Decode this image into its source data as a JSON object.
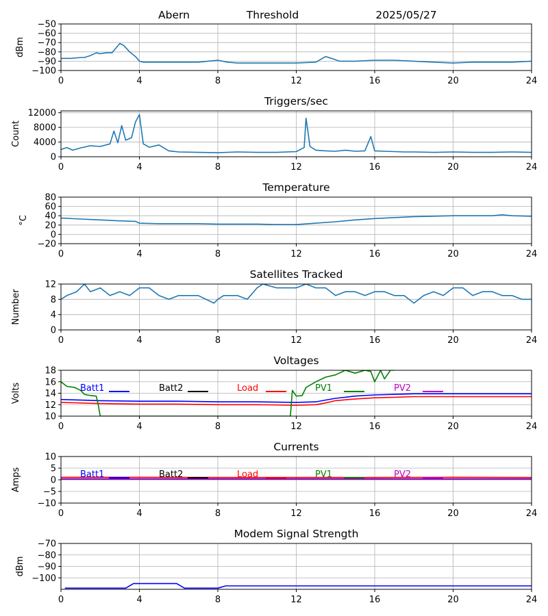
{
  "header": {
    "station": "Abern",
    "mode": "Threshold",
    "date": "2025/05/27"
  },
  "colors": {
    "default": "#1f77b4",
    "Batt1": "#0000ff",
    "Batt2": "#000000",
    "Load": "#ff0000",
    "PV1": "#008000",
    "PV2": "#bf00bf",
    "grid": "#b0b0b0"
  },
  "chart_data": [
    {
      "id": "threshold",
      "type": "line",
      "title": "",
      "ylabel": "dBm",
      "xlim": [
        0,
        24
      ],
      "ylim": [
        -100,
        -50
      ],
      "xticks": [
        0,
        4,
        8,
        12,
        16,
        20,
        24
      ],
      "yticks": [
        -100,
        -90,
        -80,
        -70,
        -60,
        -50
      ],
      "grid": true,
      "series": [
        {
          "x": [
            0,
            0.5,
            1,
            1.2,
            1.5,
            1.8,
            2,
            2.3,
            2.6,
            2.8,
            3.0,
            3.2,
            3.5,
            3.8,
            4.0,
            4.2,
            5,
            6,
            7,
            7.5,
            8,
            8.5,
            9,
            10,
            11,
            12,
            13,
            13.5,
            13.8,
            14.2,
            15,
            16,
            17,
            18,
            19,
            20,
            21,
            22,
            23,
            24
          ],
          "y": [
            -87,
            -87,
            -86,
            -86,
            -84,
            -81,
            -82,
            -81,
            -81,
            -76,
            -71,
            -73,
            -80,
            -85,
            -90,
            -91,
            -91,
            -91,
            -91,
            -90,
            -89,
            -91,
            -92,
            -92,
            -92,
            -92,
            -91,
            -85,
            -87,
            -90,
            -90,
            -89,
            -89,
            -90,
            -91,
            -92,
            -91,
            -91,
            -91,
            -90
          ]
        }
      ]
    },
    {
      "id": "triggers",
      "type": "line",
      "title": "Triggers/sec",
      "ylabel": "Count",
      "xlim": [
        0,
        24
      ],
      "ylim": [
        0,
        12500
      ],
      "xticks": [
        0,
        4,
        8,
        12,
        16,
        20,
        24
      ],
      "yticks": [
        0,
        4000,
        8000,
        12000
      ],
      "grid": true,
      "series": [
        {
          "x": [
            0,
            0.3,
            0.6,
            1.0,
            1.5,
            2.0,
            2.5,
            2.7,
            2.9,
            3.1,
            3.3,
            3.6,
            3.8,
            4.0,
            4.2,
            4.5,
            5.0,
            5.5,
            6.0,
            7.0,
            8.0,
            9.0,
            10.0,
            11.0,
            12.0,
            12.4,
            12.5,
            12.7,
            13.0,
            13.5,
            14.0,
            14.5,
            15.0,
            15.5,
            15.8,
            16.0,
            16.5,
            17.0,
            17.5,
            18.0,
            19.0,
            20.0,
            21.0,
            22.0,
            23.0,
            24.0
          ],
          "y": [
            2000,
            2500,
            1800,
            2400,
            3000,
            2800,
            3500,
            7000,
            3800,
            8500,
            4500,
            5200,
            9500,
            11500,
            3500,
            2600,
            3200,
            1600,
            1300,
            1200,
            1100,
            1300,
            1200,
            1200,
            1400,
            2500,
            10500,
            2800,
            1800,
            1600,
            1500,
            1800,
            1500,
            1600,
            5500,
            1600,
            1500,
            1400,
            1300,
            1300,
            1200,
            1300,
            1200,
            1200,
            1300,
            1200
          ]
        }
      ]
    },
    {
      "id": "temperature",
      "type": "line",
      "title": "Temperature",
      "ylabel": "°C",
      "xlim": [
        0,
        24
      ],
      "ylim": [
        -20,
        80
      ],
      "xticks": [
        0,
        4,
        8,
        12,
        16,
        20,
        24
      ],
      "yticks": [
        -20,
        0,
        20,
        40,
        60,
        80
      ],
      "grid": true,
      "series": [
        {
          "x": [
            0,
            1,
            2,
            3,
            3.8,
            4.0,
            5,
            6,
            7,
            8,
            9,
            10,
            11,
            12,
            13,
            14,
            15,
            16,
            17,
            18,
            19,
            20,
            21,
            22,
            22.5,
            23,
            24
          ],
          "y": [
            35,
            33,
            31,
            29,
            28,
            24,
            23,
            23,
            23,
            22,
            22,
            22,
            21,
            21,
            24,
            27,
            31,
            34,
            36,
            38,
            39,
            40,
            40,
            40,
            42,
            40,
            39
          ]
        }
      ]
    },
    {
      "id": "satellites",
      "type": "line",
      "title": "Satellites Tracked",
      "ylabel": "Number",
      "xlim": [
        0,
        24
      ],
      "ylim": [
        0,
        12
      ],
      "xticks": [
        0,
        4,
        8,
        12,
        16,
        20,
        24
      ],
      "yticks": [
        0,
        4,
        8,
        12
      ],
      "grid": true,
      "series": [
        {
          "x": [
            0,
            0.3,
            0.8,
            1.0,
            1.2,
            1.5,
            2.0,
            2.5,
            3.0,
            3.5,
            4.0,
            4.5,
            5.0,
            5.5,
            6.0,
            7.0,
            7.8,
            8.0,
            8.3,
            9.0,
            9.5,
            10.0,
            10.3,
            11.0,
            11.5,
            12.0,
            12.5,
            13.0,
            13.5,
            14.0,
            14.5,
            15.0,
            15.5,
            16.0,
            16.5,
            17.0,
            17.5,
            18.0,
            18.5,
            19.0,
            19.5,
            20.0,
            20.5,
            21.0,
            21.5,
            22.0,
            22.5,
            23.0,
            23.5,
            24.0
          ],
          "y": [
            8,
            9,
            10,
            11,
            12,
            10,
            11,
            9,
            10,
            9,
            11,
            11,
            9,
            8,
            9,
            9,
            7,
            8,
            9,
            9,
            8,
            11,
            12,
            11,
            11,
            11,
            12,
            11,
            11,
            9,
            10,
            10,
            9,
            10,
            10,
            9,
            9,
            7,
            9,
            10,
            9,
            11,
            11,
            9,
            10,
            10,
            9,
            9,
            8,
            8
          ]
        }
      ]
    },
    {
      "id": "voltages",
      "type": "line",
      "title": "Voltages",
      "ylabel": "Volts",
      "xlim": [
        0,
        24
      ],
      "ylim": [
        10,
        18
      ],
      "xticks": [
        0,
        4,
        8,
        12,
        16,
        20,
        24
      ],
      "yticks": [
        10,
        12,
        14,
        16,
        18
      ],
      "grid": true,
      "legend": [
        "Batt1",
        "Batt2",
        "Load",
        "PV1",
        "PV2"
      ],
      "series": [
        {
          "name": "Batt1",
          "x": [
            0,
            2,
            4,
            6,
            8,
            10,
            12,
            13,
            13.5,
            14,
            15,
            16,
            17,
            18,
            20,
            22,
            24
          ],
          "y": [
            12.9,
            12.7,
            12.6,
            12.6,
            12.5,
            12.5,
            12.4,
            12.5,
            12.8,
            13.1,
            13.5,
            13.7,
            13.8,
            13.9,
            13.9,
            13.9,
            13.9
          ]
        },
        {
          "name": "Load",
          "x": [
            0,
            2,
            4,
            6,
            8,
            10,
            12,
            13,
            13.5,
            14,
            15,
            16,
            17,
            18,
            20,
            22,
            24
          ],
          "y": [
            12.4,
            12.2,
            12.1,
            12.1,
            12.0,
            12.0,
            11.9,
            12.0,
            12.3,
            12.7,
            13.0,
            13.2,
            13.3,
            13.4,
            13.4,
            13.4,
            13.4
          ]
        },
        {
          "name": "PV1",
          "x": [
            0,
            0.3,
            0.7,
            1.0,
            1.2,
            1.5,
            1.8,
            1.9,
            2.0,
            11.7,
            11.8,
            12.0,
            12.3,
            12.5,
            13.0,
            13.5,
            14.0,
            14.5,
            15.0,
            15.5,
            15.8,
            16.0,
            16.3,
            16.5,
            16.8,
            17.0
          ],
          "y": [
            16,
            15.2,
            15.0,
            14.5,
            13.8,
            13.6,
            13.5,
            12,
            10,
            10,
            14.5,
            13.5,
            13.6,
            15,
            16,
            16.8,
            17.2,
            18,
            17.5,
            18,
            17.8,
            16,
            18,
            16.5,
            18,
            18
          ]
        }
      ]
    },
    {
      "id": "currents",
      "type": "line",
      "title": "Currents",
      "ylabel": "Amps",
      "xlim": [
        0,
        24
      ],
      "ylim": [
        -10,
        10
      ],
      "xticks": [
        0,
        4,
        8,
        12,
        16,
        20,
        24
      ],
      "yticks": [
        -10,
        -5,
        0,
        5,
        10
      ],
      "grid": true,
      "legend": [
        "Batt1",
        "Batt2",
        "Load",
        "PV1",
        "PV2"
      ],
      "series": [
        {
          "name": "Batt1",
          "x": [
            0,
            24
          ],
          "y": [
            0.4,
            0.4
          ]
        },
        {
          "name": "Load",
          "x": [
            0,
            4,
            8,
            12,
            16,
            20,
            24
          ],
          "y": [
            1.1,
            1.1,
            1.0,
            1.0,
            1.0,
            1.1,
            1.0
          ]
        },
        {
          "name": "PV1",
          "x": [
            0,
            24
          ],
          "y": [
            0.3,
            0.3
          ]
        },
        {
          "name": "PV2",
          "x": [
            0,
            24
          ],
          "y": [
            0.2,
            0.2
          ]
        }
      ]
    },
    {
      "id": "modem",
      "type": "line",
      "title": "Modem Signal Strength",
      "ylabel": "dBm",
      "xlim": [
        0,
        24
      ],
      "ylim": [
        -110,
        -70
      ],
      "xticks": [
        0,
        4,
        8,
        12,
        16,
        20,
        24
      ],
      "yticks": [
        -100,
        -90,
        -80,
        -70
      ],
      "grid": true,
      "series": [
        {
          "name": "Modem",
          "x": [
            0.2,
            3.3,
            3.7,
            5.9,
            6.3,
            8.0,
            8.4,
            24
          ],
          "y": [
            -109,
            -109,
            -105,
            -105,
            -109,
            -109,
            -107,
            -107
          ]
        }
      ]
    }
  ]
}
